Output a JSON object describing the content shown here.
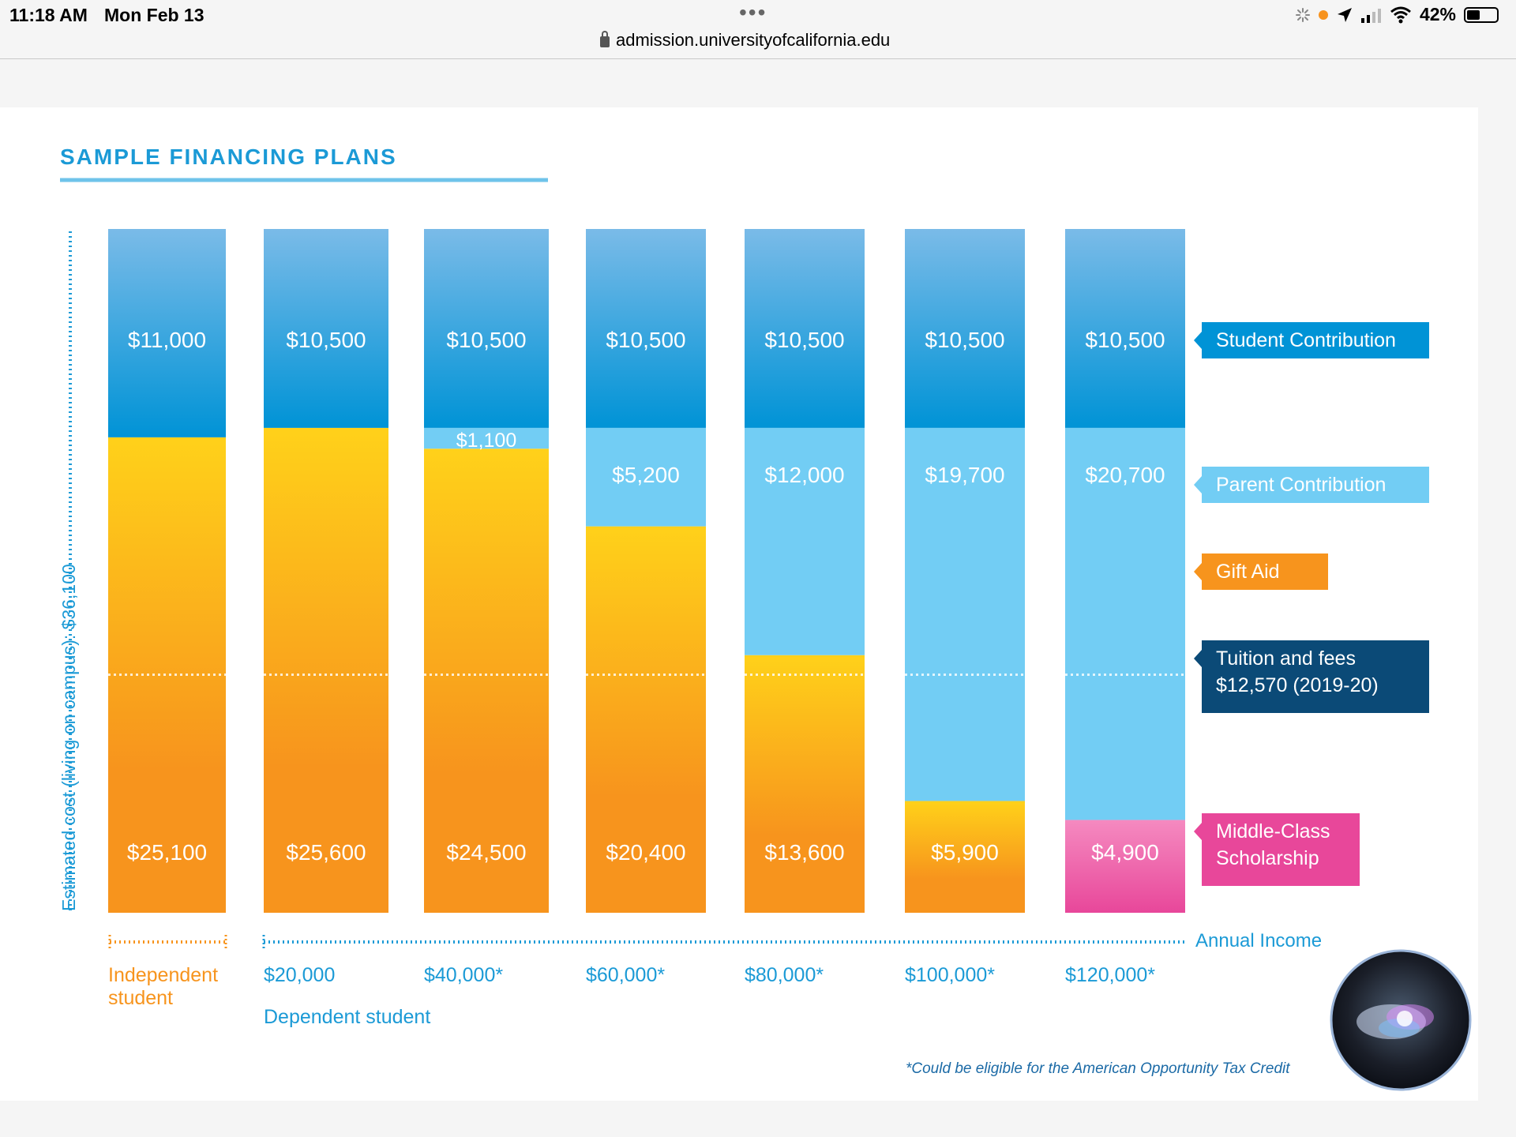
{
  "status_bar": {
    "time": "11:18 AM",
    "date": "Mon Feb 13",
    "menu_dots": "•••",
    "url": "admission.universityofcalifornia.edu",
    "battery": "42%",
    "icons": [
      "loading-spinner-icon",
      "location-arrow-icon",
      "signal-icon",
      "wifi-icon",
      "battery-icon"
    ]
  },
  "chart": {
    "title": "SAMPLE FINANCING PLANS",
    "y_axis_label": "Estimated cost (living on campus): $36,100",
    "x_axis_label": "Annual Income",
    "independent_label": "Independent student",
    "dependent_label": "Dependent student",
    "footnote": "*Could be eligible for the American Opportunity Tax Credit"
  },
  "chart_data": {
    "type": "bar",
    "stacked": true,
    "total": 36100,
    "tuition_reference": 12570,
    "categories": [
      "Independent student",
      "$20,000",
      "$40,000*",
      "$60,000*",
      "$80,000*",
      "$100,000*",
      "$120,000*"
    ],
    "series": [
      {
        "name": "Middle-Class Scholarship",
        "values": [
          0,
          0,
          0,
          0,
          0,
          0,
          4900
        ],
        "labels": [
          "",
          "",
          "",
          "",
          "",
          "",
          "$4,900"
        ]
      },
      {
        "name": "Gift Aid",
        "values": [
          25100,
          25600,
          24500,
          20400,
          13600,
          5900,
          0
        ],
        "labels": [
          "$25,100",
          "$25,600",
          "$24,500",
          "$20,400",
          "$13,600",
          "$5,900",
          ""
        ]
      },
      {
        "name": "Parent Contribution",
        "values": [
          0,
          0,
          1100,
          5200,
          12000,
          19700,
          20700
        ],
        "labels": [
          "",
          "",
          "$1,100",
          "$5,200",
          "$12,000",
          "$19,700",
          "$20,700"
        ]
      },
      {
        "name": "Student Contribution",
        "values": [
          11000,
          10500,
          10500,
          10500,
          10500,
          10500,
          10500
        ],
        "labels": [
          "$11,000",
          "$10,500",
          "$10,500",
          "$10,500",
          "$10,500",
          "$10,500",
          "$10,500"
        ]
      }
    ],
    "legend": [
      {
        "key": "student",
        "label": "Student Contribution",
        "color": "#0093d6"
      },
      {
        "key": "parent",
        "label": "Parent Contribution",
        "color": "#72cdf4"
      },
      {
        "key": "gift",
        "label": "Gift Aid",
        "color": "#f7941d"
      },
      {
        "key": "tuition",
        "label": "Tuition and fees $12,570 (2019-20)",
        "color": "#0b4a77"
      },
      {
        "key": "mcs",
        "label": "Middle-Class Scholarship",
        "color": "#e8479a"
      }
    ],
    "colors": {
      "gift_top": "#ffd11a",
      "gift_bottom": "#f7941d",
      "parent": "#72cdf4",
      "student_top": "#7abbe8",
      "student_bottom": "#0093d6",
      "mcs_top": "#f58ac0",
      "mcs_bottom": "#e8479a",
      "title": "#1b9ad6",
      "independent": "#f7941d"
    }
  }
}
